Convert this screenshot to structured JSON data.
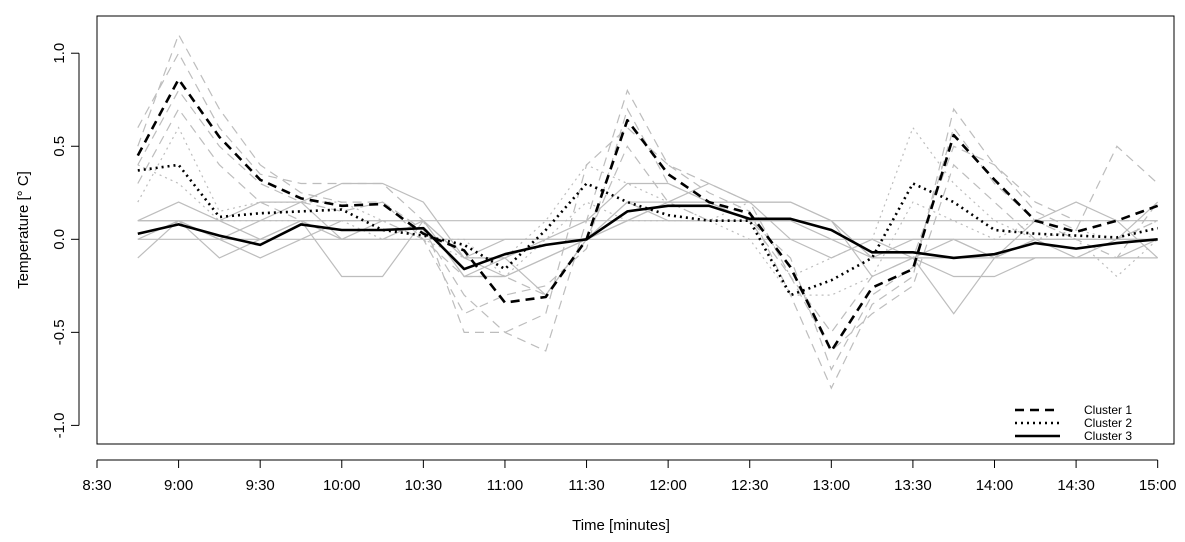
{
  "chart_data": {
    "type": "line",
    "title": "",
    "xlabel": "Time [minutes]",
    "ylabel": "Temperature [° C]",
    "x_ticks": [
      "8:30",
      "9:00",
      "9:30",
      "10:00",
      "10:30",
      "11:00",
      "11:30",
      "12:00",
      "12:30",
      "13:00",
      "13:30",
      "14:00",
      "14:30",
      "15:00"
    ],
    "y_ticks": [
      "-1.0",
      "-0.5",
      "0.0",
      "0.5",
      "1.0"
    ],
    "xlim": [
      0,
      13.2
    ],
    "ylim": [
      -1.1,
      1.2
    ],
    "legend_position": "bottom-right",
    "x": [
      0.5,
      1.0,
      1.5,
      2.0,
      2.5,
      3.0,
      3.5,
      4.0,
      4.5,
      5.0,
      5.5,
      6.0,
      6.5,
      7.0,
      7.5,
      8.0,
      8.5,
      9.0,
      9.5,
      10.0,
      10.5,
      11.0,
      11.5,
      12.0,
      12.5,
      13.0
    ],
    "series": [
      {
        "name": "Cluster 1",
        "style": "dashed",
        "color": "#000000",
        "values": [
          0.45,
          0.86,
          0.55,
          0.32,
          0.22,
          0.18,
          0.19,
          0.03,
          -0.06,
          -0.34,
          -0.31,
          0.0,
          0.64,
          0.35,
          0.2,
          0.14,
          -0.15,
          -0.6,
          -0.26,
          -0.16,
          0.56,
          0.32,
          0.1,
          0.04,
          0.1,
          0.18
        ]
      },
      {
        "name": "Cluster 2",
        "style": "dotted",
        "color": "#000000",
        "values": [
          0.37,
          0.4,
          0.12,
          0.14,
          0.15,
          0.16,
          0.05,
          0.02,
          -0.03,
          -0.16,
          0.05,
          0.3,
          0.2,
          0.13,
          0.1,
          0.1,
          -0.3,
          -0.22,
          -0.1,
          0.3,
          0.2,
          0.05,
          0.03,
          0.02,
          0.01,
          0.06
        ]
      },
      {
        "name": "Cluster 3",
        "style": "solid",
        "color": "#000000",
        "values": [
          0.03,
          0.08,
          0.02,
          -0.03,
          0.08,
          0.05,
          0.05,
          0.06,
          -0.16,
          -0.08,
          -0.03,
          0.0,
          0.15,
          0.18,
          0.18,
          0.11,
          0.11,
          0.05,
          -0.07,
          -0.07,
          -0.1,
          -0.08,
          -0.02,
          -0.05,
          -0.02,
          0.0
        ]
      }
    ],
    "background_series_color": "#bdbdbd",
    "background_series": [
      {
        "style": "dashed",
        "values": [
          0.5,
          1.1,
          0.7,
          0.4,
          0.25,
          0.2,
          0.2,
          0.05,
          -0.3,
          -0.5,
          -0.6,
          0.1,
          0.8,
          0.4,
          0.25,
          0.15,
          -0.3,
          -0.8,
          -0.35,
          -0.2,
          0.7,
          0.4,
          0.15,
          0.05,
          0.5,
          0.3
        ]
      },
      {
        "style": "dashed",
        "values": [
          0.4,
          0.8,
          0.5,
          0.3,
          0.2,
          0.15,
          0.2,
          0.0,
          -0.4,
          -0.3,
          -0.25,
          -0.05,
          0.7,
          0.3,
          0.2,
          0.1,
          -0.1,
          -0.7,
          -0.3,
          -0.15,
          0.6,
          0.3,
          0.1,
          0.0,
          -0.1,
          0.2
        ]
      },
      {
        "style": "dashed",
        "values": [
          0.6,
          1.0,
          0.6,
          0.35,
          0.3,
          0.3,
          0.3,
          0.1,
          -0.5,
          -0.5,
          -0.4,
          0.4,
          0.6,
          0.4,
          0.3,
          0.2,
          -0.2,
          -0.5,
          -0.2,
          -0.1,
          0.5,
          0.4,
          0.2,
          0.1,
          0.1,
          0.1
        ]
      },
      {
        "style": "dashed",
        "values": [
          0.3,
          0.7,
          0.4,
          0.2,
          0.1,
          0.1,
          0.1,
          0.0,
          -0.2,
          -0.2,
          -0.3,
          0.0,
          0.5,
          0.2,
          0.1,
          0.1,
          -0.2,
          -0.6,
          -0.4,
          -0.25,
          0.4,
          0.2,
          0.0,
          0.0,
          0.0,
          0.1
        ]
      },
      {
        "style": "dotted",
        "values": [
          0.2,
          0.6,
          0.15,
          0.2,
          0.2,
          0.2,
          0.1,
          0.0,
          -0.1,
          -0.1,
          0.1,
          0.4,
          0.3,
          0.2,
          0.1,
          0.2,
          -0.2,
          -0.1,
          0.0,
          0.6,
          0.3,
          0.1,
          0.0,
          0.05,
          0.0,
          0.1
        ]
      },
      {
        "style": "dotted",
        "values": [
          0.4,
          0.3,
          0.1,
          0.1,
          0.1,
          0.1,
          0.0,
          0.0,
          0.0,
          -0.2,
          0.0,
          0.2,
          0.1,
          0.1,
          0.1,
          0.0,
          -0.3,
          -0.3,
          -0.2,
          0.2,
          0.1,
          0.0,
          0.1,
          0.0,
          -0.2,
          0.0
        ]
      },
      {
        "style": "solid",
        "values": [
          0.1,
          0.2,
          0.1,
          0.0,
          0.1,
          0.0,
          0.1,
          0.1,
          -0.1,
          -0.2,
          -0.1,
          0.0,
          0.2,
          0.2,
          0.3,
          0.2,
          0.2,
          0.1,
          -0.1,
          -0.1,
          -0.1,
          -0.1,
          0.0,
          0.0,
          0.0,
          0.0
        ]
      },
      {
        "style": "solid",
        "values": [
          0.0,
          0.0,
          0.0,
          0.0,
          0.0,
          0.0,
          0.0,
          0.0,
          0.0,
          0.0,
          0.0,
          0.0,
          0.0,
          0.0,
          0.0,
          0.0,
          0.0,
          0.0,
          0.0,
          0.0,
          0.0,
          0.0,
          0.0,
          0.0,
          0.0,
          0.0
        ]
      },
      {
        "style": "solid",
        "values": [
          -0.1,
          0.1,
          -0.1,
          0.0,
          0.1,
          -0.2,
          -0.2,
          0.1,
          -0.2,
          -0.1,
          -0.3,
          0.0,
          0.1,
          0.2,
          0.2,
          0.2,
          0.0,
          -0.1,
          0.0,
          -0.1,
          -0.2,
          -0.2,
          -0.1,
          -0.1,
          -0.1,
          0.0
        ]
      },
      {
        "style": "solid",
        "values": [
          0.1,
          0.1,
          0.1,
          0.2,
          0.2,
          0.3,
          0.3,
          0.2,
          -0.1,
          0.0,
          0.0,
          0.1,
          0.3,
          0.3,
          0.2,
          0.1,
          0.1,
          0.0,
          -0.1,
          -0.1,
          -0.4,
          -0.1,
          0.1,
          0.2,
          0.1,
          -0.1
        ]
      },
      {
        "style": "solid",
        "values": [
          0.0,
          0.1,
          0.0,
          -0.1,
          0.0,
          0.1,
          0.1,
          0.1,
          -0.1,
          -0.1,
          0.0,
          0.0,
          0.2,
          0.1,
          0.1,
          0.1,
          0.1,
          0.1,
          -0.1,
          0.0,
          0.0,
          -0.1,
          -0.1,
          -0.1,
          -0.1,
          -0.1
        ]
      },
      {
        "style": "solid",
        "values": [
          0.1,
          0.1,
          0.1,
          0.1,
          0.1,
          0.1,
          0.1,
          0.1,
          0.1,
          0.1,
          0.1,
          0.1,
          0.1,
          0.1,
          0.1,
          0.1,
          0.1,
          0.1,
          0.1,
          0.1,
          0.1,
          0.1,
          0.1,
          0.1,
          0.1,
          0.1
        ]
      },
      {
        "style": "solid",
        "values": [
          0.1,
          0.1,
          0.0,
          0.1,
          0.2,
          0.0,
          0.0,
          0.1,
          -0.2,
          -0.2,
          -0.1,
          0.0,
          0.1,
          0.2,
          0.2,
          0.2,
          0.2,
          0.1,
          -0.2,
          -0.1,
          0.0,
          -0.1,
          0.0,
          -0.1,
          0.0,
          0.2
        ]
      }
    ]
  }
}
